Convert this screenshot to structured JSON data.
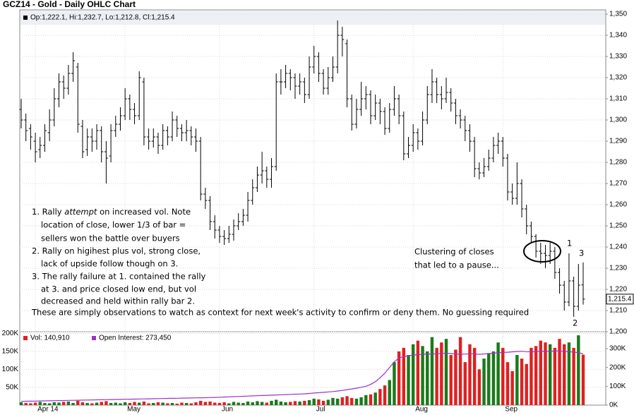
{
  "chart_data": [
    {
      "type": "ohlc",
      "title": "GCZ14 - Gold - Daily OHLC Chart",
      "legend": "Op:1,222.1, Hi:1,232.7, Lo:1,212.8, Cl:1,215.4",
      "last_label": "1,215.4",
      "color": "#000000",
      "grid": true,
      "categories": [
        null,
        null,
        null,
        "Apr 14",
        null,
        null,
        null,
        null,
        null,
        null,
        null,
        null,
        null,
        null,
        null,
        null,
        null,
        null,
        null,
        null,
        null,
        null,
        "May",
        null,
        null,
        null,
        null,
        null,
        null,
        null,
        null,
        null,
        null,
        null,
        null,
        null,
        null,
        null,
        null,
        null,
        null,
        null,
        "Jun",
        null,
        null,
        null,
        null,
        null,
        null,
        null,
        null,
        null,
        null,
        null,
        null,
        null,
        null,
        null,
        null,
        null,
        null,
        null,
        "Jul",
        null,
        null,
        null,
        null,
        null,
        null,
        null,
        null,
        null,
        null,
        null,
        null,
        null,
        null,
        null,
        null,
        null,
        null,
        null,
        null,
        "Aug",
        null,
        null,
        null,
        null,
        null,
        null,
        null,
        null,
        null,
        null,
        null,
        null,
        null,
        null,
        null,
        null,
        null,
        null,
        "Sep",
        null,
        null,
        null,
        null,
        null,
        null,
        null,
        null,
        null,
        null,
        null,
        null,
        null,
        null,
        null,
        null,
        null
      ],
      "open": [
        1305,
        1300,
        1296,
        1290,
        1286,
        1288,
        1294,
        1300,
        1310,
        1318,
        1315,
        1322,
        1325,
        1297,
        1286,
        1292,
        1290,
        1295,
        1285,
        1283,
        1295,
        1298,
        1302,
        1310,
        1305,
        1302,
        1318,
        1292,
        1290,
        1292,
        1288,
        1295,
        1292,
        1300,
        1296,
        1294,
        1295,
        1292,
        1290,
        1265,
        1262,
        1252,
        1248,
        1245,
        1244,
        1246,
        1250,
        1252,
        1255,
        1262,
        1268,
        1274,
        1276,
        1272,
        1278,
        1318,
        1318,
        1322,
        1320,
        1316,
        1318,
        1312,
        1325,
        1330,
        1322,
        1315,
        1320,
        1325,
        1340,
        1336,
        1310,
        1298,
        1305,
        1310,
        1312,
        1302,
        1308,
        1304,
        1296,
        1305,
        1310,
        1302,
        1284,
        1288,
        1294,
        1290,
        1300,
        1312,
        1318,
        1312,
        1310,
        1313,
        1308,
        1302,
        1300,
        1295,
        1290,
        1277,
        1275,
        1278,
        1282,
        1288,
        1290,
        1282,
        1266,
        1263,
        1270,
        1258,
        1250,
        1245,
        1238,
        1237,
        1236,
        1238,
        1228,
        1222,
        1214,
        1224,
        1212,
        1222.1
      ],
      "high": [
        1310,
        1303,
        1298,
        1294,
        1292,
        1298,
        1305,
        1315,
        1322,
        1321,
        1326,
        1332,
        1327,
        1300,
        1296,
        1296,
        1298,
        1297,
        1290,
        1298,
        1302,
        1306,
        1315,
        1312,
        1308,
        1323,
        1320,
        1296,
        1296,
        1294,
        1298,
        1297,
        1304,
        1302,
        1298,
        1300,
        1297,
        1296,
        1292,
        1268,
        1264,
        1255,
        1250,
        1248,
        1250,
        1253,
        1256,
        1258,
        1266,
        1272,
        1278,
        1285,
        1278,
        1282,
        1322,
        1324,
        1326,
        1324,
        1322,
        1322,
        1320,
        1330,
        1335,
        1332,
        1324,
        1325,
        1330,
        1347,
        1344,
        1338,
        1312,
        1310,
        1318,
        1316,
        1314,
        1312,
        1310,
        1306,
        1308,
        1316,
        1312,
        1304,
        1292,
        1298,
        1296,
        1304,
        1316,
        1324,
        1320,
        1316,
        1320,
        1315,
        1310,
        1305,
        1302,
        1298,
        1292,
        1280,
        1282,
        1286,
        1292,
        1294,
        1292,
        1284,
        1270,
        1280,
        1272,
        1260,
        1252,
        1246,
        1242,
        1241,
        1242,
        1240,
        1230,
        1224,
        1237,
        1226,
        1232,
        1232.7
      ],
      "low": [
        1296,
        1290,
        1286,
        1280,
        1282,
        1285,
        1290,
        1297,
        1306,
        1310,
        1312,
        1318,
        1294,
        1282,
        1283,
        1285,
        1286,
        1280,
        1270,
        1280,
        1292,
        1295,
        1300,
        1300,
        1298,
        1300,
        1288,
        1286,
        1287,
        1284,
        1286,
        1288,
        1290,
        1292,
        1290,
        1290,
        1288,
        1285,
        1262,
        1258,
        1248,
        1244,
        1242,
        1241,
        1242,
        1243,
        1248,
        1250,
        1252,
        1260,
        1266,
        1270,
        1268,
        1268,
        1276,
        1312,
        1315,
        1314,
        1310,
        1312,
        1308,
        1310,
        1322,
        1318,
        1312,
        1312,
        1318,
        1322,
        1330,
        1306,
        1295,
        1296,
        1302,
        1305,
        1298,
        1300,
        1298,
        1293,
        1294,
        1302,
        1298,
        1281,
        1282,
        1285,
        1286,
        1288,
        1298,
        1308,
        1308,
        1305,
        1308,
        1304,
        1298,
        1296,
        1290,
        1285,
        1273,
        1272,
        1273,
        1276,
        1280,
        1284,
        1278,
        1262,
        1260,
        1260,
        1254,
        1246,
        1242,
        1235,
        1232,
        1230,
        1232,
        1225,
        1218,
        1210,
        1212,
        1207,
        1210,
        1212.8
      ],
      "close": [
        1300,
        1295,
        1292,
        1285,
        1288,
        1295,
        1300,
        1310,
        1318,
        1315,
        1322,
        1328,
        1298,
        1285,
        1292,
        1290,
        1295,
        1285,
        1282,
        1295,
        1298,
        1302,
        1310,
        1305,
        1302,
        1320,
        1292,
        1290,
        1292,
        1288,
        1295,
        1292,
        1300,
        1296,
        1294,
        1295,
        1292,
        1290,
        1265,
        1262,
        1252,
        1248,
        1245,
        1244,
        1246,
        1250,
        1252,
        1255,
        1262,
        1268,
        1274,
        1276,
        1272,
        1278,
        1318,
        1318,
        1322,
        1320,
        1316,
        1318,
        1312,
        1325,
        1330,
        1322,
        1315,
        1320,
        1325,
        1340,
        1338,
        1310,
        1298,
        1305,
        1310,
        1312,
        1302,
        1308,
        1304,
        1296,
        1305,
        1310,
        1302,
        1284,
        1288,
        1294,
        1290,
        1300,
        1312,
        1318,
        1312,
        1310,
        1313,
        1308,
        1302,
        1300,
        1295,
        1290,
        1277,
        1275,
        1278,
        1282,
        1288,
        1290,
        1282,
        1266,
        1263,
        1270,
        1258,
        1250,
        1245,
        1238,
        1237,
        1236,
        1238,
        1228,
        1222,
        1214,
        1224,
        1212,
        1222,
        1215.4
      ],
      "ylim": [
        1200,
        1352
      ],
      "yticks": [
        {
          "value": 1200,
          "label": "1,200"
        },
        {
          "value": 1210,
          "label": "1,210"
        },
        {
          "value": 1220,
          "label": "1,220"
        },
        {
          "value": 1230,
          "label": "1,230"
        },
        {
          "value": 1240,
          "label": "1,240"
        },
        {
          "value": 1250,
          "label": "1,250"
        },
        {
          "value": 1260,
          "label": "1,260"
        },
        {
          "value": 1270,
          "label": "1,270"
        },
        {
          "value": 1280,
          "label": "1,280"
        },
        {
          "value": 1290,
          "label": "1,290"
        },
        {
          "value": 1300,
          "label": "1,300"
        },
        {
          "value": 1310,
          "label": "1,310"
        },
        {
          "value": 1320,
          "label": "1,320"
        },
        {
          "value": 1330,
          "label": "1,330"
        },
        {
          "value": 1340,
          "label": "1,340"
        },
        {
          "value": 1350,
          "label": "1,350"
        }
      ],
      "annotations": {
        "note1": [
          "1. Rally ",
          "attempt",
          " on increased vol. Note",
          "location of close, lower 1/3 of bar =",
          "sellers won the battle over buyers"
        ],
        "note2": [
          "2. Rally on higihest plus vol, strong close,",
          "lack of upside follow though on 3."
        ],
        "note3": [
          "3. The rally failure at 1. contained the rally",
          "at 3. and price closed low end, but vol",
          "decreased and held within rally bar 2."
        ],
        "summary": "These are simply observations to watch as context for next week's activity to confirm or deny them.  No guessing required",
        "cluster": [
          "Clustering of closes",
          "that led to a pause..."
        ],
        "markers": [
          "1",
          "2",
          "3"
        ]
      }
    },
    {
      "type": "bar",
      "up_color": "#1a7a1a",
      "down_color": "#e02020",
      "ylim": [
        0,
        205000
      ],
      "yticks": [
        {
          "value": 50000,
          "label": "50K"
        },
        {
          "value": 100000,
          "label": "100K"
        },
        {
          "value": 150000,
          "label": "150K"
        },
        {
          "value": 200000,
          "label": "200K"
        }
      ],
      "y2lim": [
        0,
        390000
      ],
      "y2ticks": [
        {
          "value": 0,
          "label": "0K"
        },
        {
          "value": 100000,
          "label": "100K"
        },
        {
          "value": 200000,
          "label": "200K"
        },
        {
          "value": 300000,
          "label": "300K"
        }
      ],
      "series": [
        {
          "name": "Vol: 140,910",
          "color": "#e02020",
          "values": [
            8000,
            6000,
            5000,
            7000,
            9000,
            6000,
            5000,
            8000,
            7000,
            9000,
            10000,
            6000,
            12000,
            8000,
            6000,
            5000,
            7000,
            9000,
            11000,
            6000,
            7000,
            5000,
            8000,
            6000,
            9000,
            7000,
            10000,
            5000,
            6000,
            8000,
            7000,
            5000,
            6000,
            4000,
            7000,
            6000,
            5000,
            8000,
            12000,
            9000,
            10000,
            7000,
            6000,
            8000,
            5000,
            9000,
            7000,
            6000,
            10000,
            8000,
            11000,
            9000,
            7000,
            12000,
            15000,
            10000,
            8000,
            9000,
            11000,
            10000,
            12000,
            14000,
            18000,
            16000,
            12000,
            15000,
            20000,
            18000,
            22000,
            25000,
            20000,
            18000,
            22000,
            28000,
            30000,
            35000,
            45000,
            55000,
            70000,
            120000,
            150000,
            160000,
            140000,
            170000,
            180000,
            165000,
            150000,
            190000,
            160000,
            175000,
            185000,
            140000,
            155000,
            190000,
            120000,
            170000,
            160000,
            100000,
            130000,
            145000,
            150000,
            175000,
            160000,
            120000,
            95000,
            140000,
            130000,
            115000,
            160000,
            165000,
            180000,
            175000,
            170000,
            160000,
            185000,
            170000,
            175000,
            160000,
            195000,
            140910
          ]
        },
        {
          "name": "Open Interest: 273,450",
          "color": "#9933cc",
          "axis": "y2",
          "values": [
            20000,
            20500,
            21000,
            21500,
            22000,
            22500,
            23000,
            23500,
            24000,
            24500,
            25000,
            25500,
            26000,
            26500,
            27000,
            27500,
            28000,
            28500,
            29000,
            29500,
            30000,
            30500,
            31000,
            31500,
            32000,
            32500,
            33000,
            33500,
            34000,
            34500,
            35000,
            35500,
            36000,
            36500,
            37000,
            37500,
            38000,
            38500,
            39000,
            39500,
            40000,
            41000,
            42000,
            43000,
            44000,
            45000,
            46000,
            47000,
            48000,
            49000,
            50000,
            51000,
            52000,
            53000,
            54000,
            55000,
            56000,
            57000,
            58000,
            59000,
            60000,
            62000,
            64000,
            66000,
            68000,
            70000,
            72000,
            75000,
            78000,
            82000,
            86000,
            90000,
            95000,
            100000,
            110000,
            125000,
            145000,
            170000,
            200000,
            230000,
            250000,
            258000,
            262000,
            266000,
            268000,
            270000,
            272000,
            271000,
            273000,
            275000,
            276000,
            274000,
            272000,
            270000,
            271000,
            273000,
            272000,
            270000,
            272000,
            274000,
            276000,
            278000,
            280000,
            281000,
            283000,
            285000,
            286000,
            284000,
            283000,
            285000,
            287000,
            286000,
            285000,
            288000,
            287000,
            286000,
            284000,
            282000,
            278000,
            273450
          ]
        }
      ]
    }
  ]
}
